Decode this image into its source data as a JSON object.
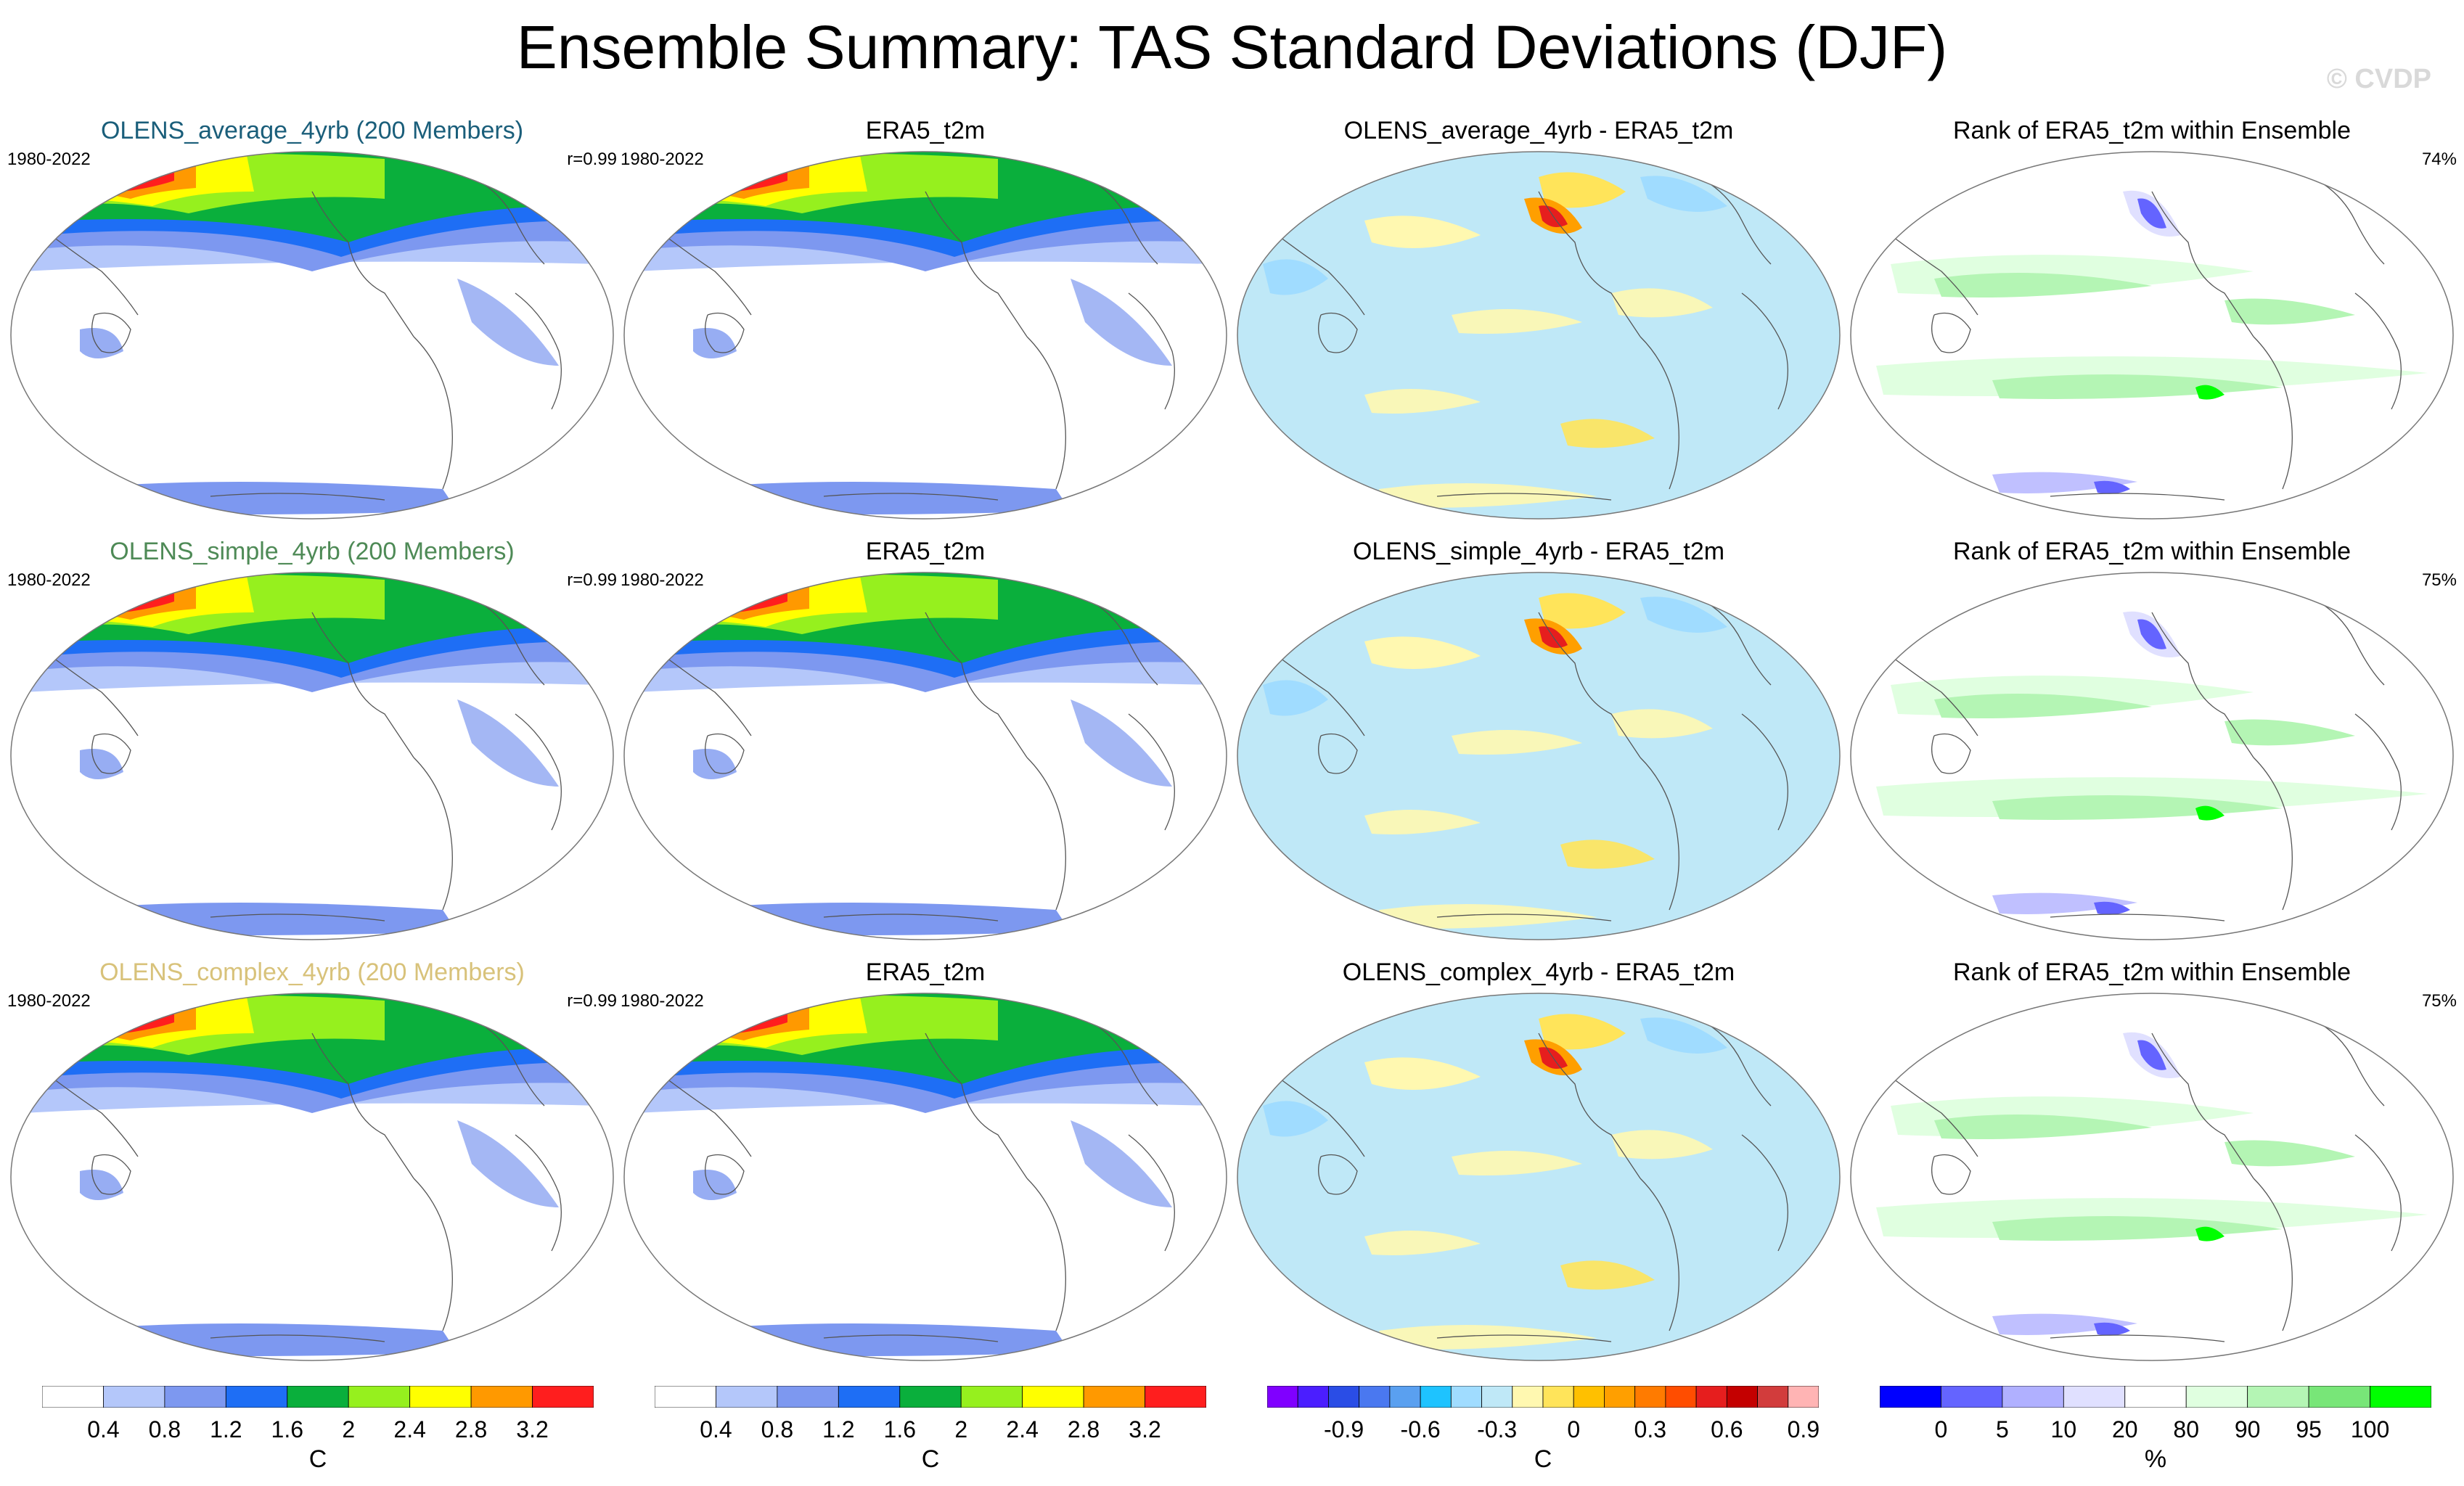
{
  "title": "Ensemble Summary: TAS Standard Deviations (DJF)",
  "watermark": "© CVDP",
  "colors": {
    "std": [
      "#ffffff",
      "#b4c7fa",
      "#7d98f0",
      "#1e6ef5",
      "#0aaf3c",
      "#96f01e",
      "#ffff00",
      "#ff9900",
      "#ff1e1e"
    ],
    "diff": [
      "#8000ff",
      "#4b1eff",
      "#2a4de6",
      "#4a78f0",
      "#5aa0f0",
      "#1ec3ff",
      "#a0dcff",
      "#bfe8f7",
      "#fff8b0",
      "#ffe45a",
      "#ffc000",
      "#ff9f00",
      "#ff7b00",
      "#ff4d00",
      "#e61e1e",
      "#c40000",
      "#d23c3c",
      "#ffb4b4"
    ],
    "rank": [
      "#0000ff",
      "#6464ff",
      "#b0b0ff",
      "#e0e0ff",
      "#ffffff",
      "#e0ffe0",
      "#b4f5b4",
      "#78e678",
      "#00ff00"
    ],
    "title_row1": "#1a5e7a",
    "title_row2": "#4e8a56",
    "title_row3": "#d8c27a"
  },
  "rows": [
    {
      "model_title": "OLENS_average_4yrb (200 Members)",
      "years_model": "1980-2022",
      "r_value": "r=0.99",
      "obs_title": "ERA5_t2m",
      "years_obs": "1980-2022",
      "diff_title": "OLENS_average_4yrb - ERA5_t2m",
      "rank_title": "Rank of ERA5_t2m within Ensemble",
      "rank_pct": "74%"
    },
    {
      "model_title": "OLENS_simple_4yrb (200 Members)",
      "years_model": "1980-2022",
      "r_value": "r=0.99",
      "obs_title": "ERA5_t2m",
      "years_obs": "1980-2022",
      "diff_title": "OLENS_simple_4yrb - ERA5_t2m",
      "rank_title": "Rank of ERA5_t2m within Ensemble",
      "rank_pct": "75%"
    },
    {
      "model_title": "OLENS_complex_4yrb (200 Members)",
      "years_model": "1980-2022",
      "r_value": "r=0.99",
      "obs_title": "ERA5_t2m",
      "years_obs": "1980-2022",
      "diff_title": "OLENS_complex_4yrb - ERA5_t2m",
      "rank_title": "Rank of ERA5_t2m within Ensemble",
      "rank_pct": "75%"
    }
  ],
  "colorbars": [
    {
      "ticks": [
        "0.4",
        "0.8",
        "1.2",
        "1.6",
        "2",
        "2.4",
        "2.8",
        "3.2"
      ],
      "unit": "C"
    },
    {
      "ticks": [
        "0.4",
        "0.8",
        "1.2",
        "1.6",
        "2",
        "2.4",
        "2.8",
        "3.2"
      ],
      "unit": "C"
    },
    {
      "ticks": [
        "-0.9",
        "-0.6",
        "-0.3",
        "0",
        "0.3",
        "0.6",
        "0.9"
      ],
      "unit": "C"
    },
    {
      "ticks": [
        "0",
        "5",
        "10",
        "20",
        "80",
        "90",
        "95",
        "100"
      ],
      "unit": "%"
    }
  ]
}
